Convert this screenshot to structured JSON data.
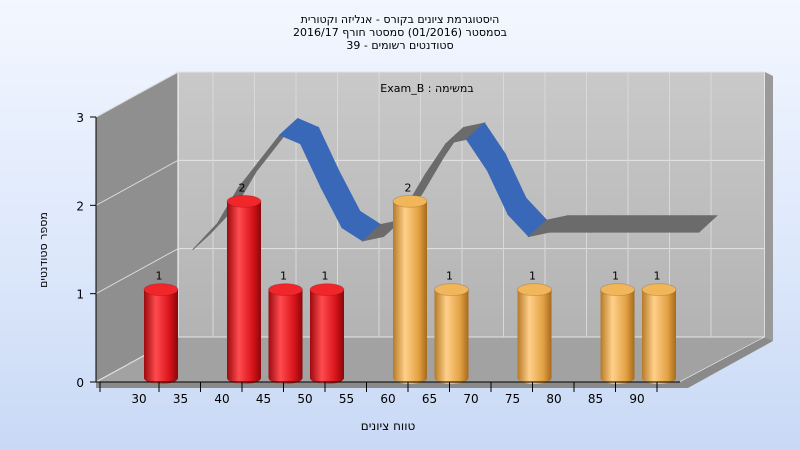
{
  "title": {
    "line1": "היסטוגרמת ציונים בקורס - אנליזה וקטורית",
    "line2": "בסמסטר  (01/2016)  סמסטר חורף 2016/17",
    "line3": "סטודנטים רשומים - 39"
  },
  "colors": {
    "red": "#e0151b",
    "gold": "#e3a244",
    "curve_front": "#3a68b8",
    "curve_back": "#6b6b6b",
    "plot_back": "#bdbdbd",
    "plot_side": "#8c8c8c"
  },
  "chart_data": {
    "type": "bar",
    "title": "במשימה : Exam_B",
    "xlabel": "טווח ציונים",
    "ylabel": "מספר סטודנטים",
    "xlim": [
      30,
      95
    ],
    "ylim": [
      0,
      3
    ],
    "x_ticks": [
      "30",
      "35",
      "40",
      "45",
      "50",
      "55",
      "60",
      "65",
      "70",
      "75",
      "80",
      "85",
      "90"
    ],
    "y_ticks": [
      "0",
      "1",
      "2",
      "3"
    ],
    "grid": true,
    "bars": [
      {
        "x": 30,
        "value": 1,
        "label": "1",
        "color": "red"
      },
      {
        "x": 40,
        "value": 2,
        "label": "2",
        "color": "red"
      },
      {
        "x": 45,
        "value": 1,
        "label": "1",
        "color": "red"
      },
      {
        "x": 50,
        "value": 1,
        "label": "1",
        "color": "red"
      },
      {
        "x": 60,
        "value": 2,
        "label": "2",
        "color": "gold"
      },
      {
        "x": 65,
        "value": 1,
        "label": "1",
        "color": "gold"
      },
      {
        "x": 75,
        "value": 1,
        "label": "1",
        "color": "gold"
      },
      {
        "x": 85,
        "value": 1,
        "label": "1",
        "color": "gold"
      },
      {
        "x": 90,
        "value": 1,
        "label": "1",
        "color": "gold"
      }
    ],
    "curve": {
      "x": [
        32,
        35,
        37.5,
        40,
        42.5,
        45,
        47.5,
        50,
        52.5,
        55,
        57.5,
        60,
        62.5,
        65,
        67.5,
        70,
        72.5,
        75,
        80,
        85,
        90,
        93
      ],
      "values": [
        1.1,
        1.4,
        1.8,
        2.1,
        2.4,
        2.3,
        1.8,
        1.35,
        1.2,
        1.25,
        1.55,
        1.95,
        2.3,
        2.35,
        2.0,
        1.5,
        1.25,
        1.3,
        1.3,
        1.3,
        1.3,
        1.3
      ]
    }
  }
}
